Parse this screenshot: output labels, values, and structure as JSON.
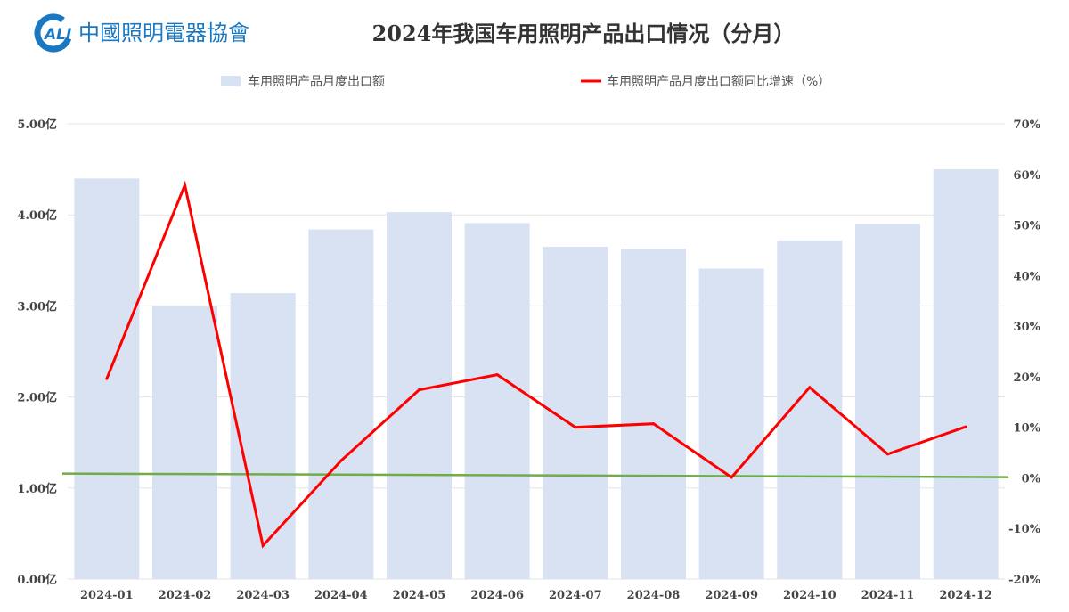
{
  "logo": {
    "text": "CALI 中国照明电器协会",
    "mark": "ALI",
    "color": "#1a78c2"
  },
  "chart_data": {
    "type": "bar+line",
    "title": "2024年我国车用照明产品出口情况（分月）",
    "categories": [
      "2024-01",
      "2024-02",
      "2024-03",
      "2024-04",
      "2024-05",
      "2024-06",
      "2024-07",
      "2024-08",
      "2024-09",
      "2024-10",
      "2024-11",
      "2024-12"
    ],
    "series": [
      {
        "name": "车用照明产品月度出口额",
        "type": "bar",
        "axis": "left",
        "color": "#d9e2f3",
        "values": [
          4.4,
          3.0,
          3.14,
          3.84,
          4.03,
          3.91,
          3.65,
          3.63,
          3.41,
          3.72,
          3.9,
          4.5
        ]
      },
      {
        "name": "车用照明产品月度出口额同比增速（%）",
        "type": "line",
        "axis": "right",
        "color": "#ff0000",
        "values": [
          19.6,
          57.9,
          -13.4,
          3.4,
          17.4,
          20.4,
          10.0,
          10.7,
          0.1,
          17.9,
          4.7,
          10.1
        ]
      }
    ],
    "reference_line": {
      "axis": "right",
      "value": 0.5,
      "color": "#70ad47"
    },
    "y_left": {
      "range": [
        0,
        5
      ],
      "ticks": [
        "0.00亿",
        "1.00亿",
        "2.00亿",
        "3.00亿",
        "4.00亿",
        "5.00亿"
      ]
    },
    "y_right": {
      "range": [
        -20,
        70
      ],
      "ticks": [
        "-20%",
        "-10%",
        "0%",
        "10%",
        "20%",
        "30%",
        "40%",
        "50%",
        "60%",
        "70%"
      ]
    },
    "grid": true,
    "legend": "top"
  }
}
